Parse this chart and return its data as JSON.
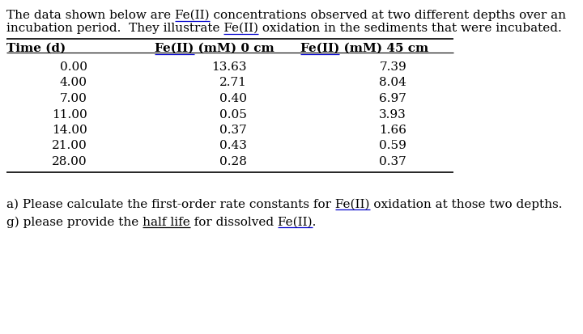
{
  "line1": "The data shown below are Fe(II) concentrations observed at two different depths over an",
  "line2": "incubation period.  They illustrate Fe(II) oxidation in the sediments that were incubated.",
  "col_headers": [
    "Time (d)",
    "Fe(II) (mM) 0 cm",
    "Fe(II) (mM) 45 cm"
  ],
  "table_data": [
    [
      "0.00",
      "13.63",
      "7.39"
    ],
    [
      "4.00",
      "2.71",
      "8.04"
    ],
    [
      "7.00",
      "0.40",
      "6.97"
    ],
    [
      "11.00",
      "0.05",
      "3.93"
    ],
    [
      "14.00",
      "0.37",
      "1.66"
    ],
    [
      "21.00",
      "0.43",
      "0.59"
    ],
    [
      "28.00",
      "0.28",
      "0.37"
    ]
  ],
  "question_a": "a) Please calculate the first-order rate constants for Fe(II) oxidation at those two depths.",
  "question_g": "g) please provide the half life for dissolved Fe(II).",
  "underline_color": "#0000CC",
  "text_color": "#000000",
  "bg_color": "#ffffff",
  "font_size": 11.0,
  "header_font_size": 11.0,
  "rule_color": "#000000",
  "fig_width": 7.2,
  "fig_height": 4.14,
  "dpi": 100
}
